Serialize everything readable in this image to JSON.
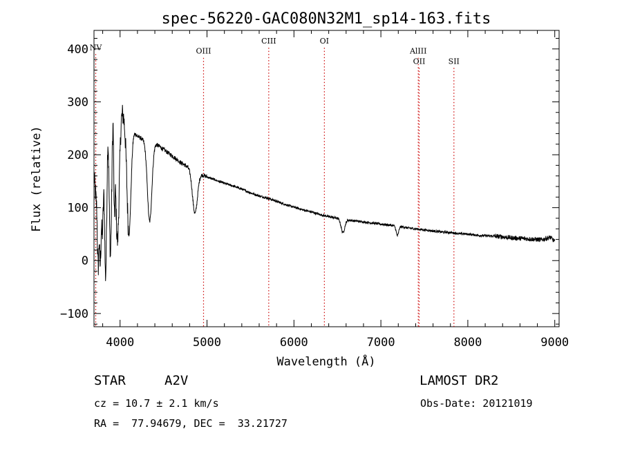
{
  "chart_data": {
    "type": "line",
    "title": "spec-56220-GAC080N32M1_sp14-163.fits",
    "xlabel": "Wavelength (Å)",
    "ylabel": "Flux (relative)",
    "xlim": [
      3700,
      9050
    ],
    "ylim": [
      -125,
      435
    ],
    "x_ticks": [
      4000,
      5000,
      6000,
      7000,
      8000,
      9000
    ],
    "y_ticks": [
      -100,
      0,
      100,
      200,
      300,
      400
    ],
    "x_tick_labels": [
      "4000",
      "5000",
      "6000",
      "7000",
      "8000",
      "9000"
    ],
    "y_tick_labels": [
      "−100",
      "0",
      "100",
      "200",
      "300",
      "400"
    ],
    "grid": false,
    "line_color": "#000000",
    "marker_color": "#cc0000",
    "lines": [
      {
        "label": "NV",
        "x": 3720,
        "y_label": 398
      },
      {
        "label": "OIII",
        "x": 4960,
        "y_label": 391
      },
      {
        "label": "CIII",
        "x": 5710,
        "y_label": 410
      },
      {
        "label": "OI",
        "x": 6350,
        "y_label": 410
      },
      {
        "label": "AlIII",
        "x": 7430,
        "y_label": 391
      },
      {
        "label": "OII",
        "x": 7440,
        "y_label": 372
      },
      {
        "label": "SII",
        "x": 7840,
        "y_label": 372
      }
    ],
    "series": [
      {
        "x": [
          3700,
          3720,
          3740,
          3760,
          3780,
          3800,
          3830,
          3860,
          3890,
          3920,
          3950,
          3980,
          4000,
          4030,
          4060,
          4100,
          4150,
          4200,
          4300,
          4400,
          4500,
          4600,
          4700,
          4800,
          4900,
          5000,
          5100,
          5200,
          5300,
          5400,
          5500,
          5600,
          5700,
          5800,
          5900,
          6000,
          6100,
          6200,
          6300,
          6400,
          6500,
          6600,
          6700,
          6800,
          6900,
          7000,
          7100,
          7200,
          7300,
          7400,
          7500,
          7600,
          7700,
          7800,
          7900,
          8000,
          8100,
          8200,
          8300,
          8400,
          8500,
          8600,
          8700,
          8800,
          8850,
          8900,
          8950,
          9000
        ],
        "y": [
          160,
          120,
          100,
          200,
          150,
          260,
          200,
          300,
          240,
          320,
          290,
          300,
          285,
          280,
          265,
          250,
          245,
          235,
          225,
          222,
          210,
          198,
          185,
          175,
          166,
          158,
          152,
          146,
          141,
          135,
          128,
          122,
          118,
          112,
          106,
          101,
          96,
          92,
          87,
          83,
          80,
          77,
          75,
          73,
          71,
          69,
          67,
          65,
          62,
          60,
          58,
          56,
          54,
          53,
          51,
          50,
          48,
          47,
          46,
          45,
          43,
          42,
          41,
          40,
          39,
          42,
          44,
          36
        ]
      }
    ],
    "absorption": [
      {
        "x": 3750,
        "depth": 150,
        "w": 12
      },
      {
        "x": 3770,
        "depth": 170,
        "w": 12
      },
      {
        "x": 3798,
        "depth": 190,
        "w": 14
      },
      {
        "x": 3835,
        "depth": 240,
        "w": 18
      },
      {
        "x": 3889,
        "depth": 230,
        "w": 22
      },
      {
        "x": 3934,
        "depth": 170,
        "w": 10
      },
      {
        "x": 3970,
        "depth": 260,
        "w": 28
      },
      {
        "x": 4102,
        "depth": 200,
        "w": 32
      },
      {
        "x": 4340,
        "depth": 150,
        "w": 36
      },
      {
        "x": 4861,
        "depth": 80,
        "w": 40
      },
      {
        "x": 6563,
        "depth": 25,
        "w": 30
      },
      {
        "x": 7190,
        "depth": 18,
        "w": 20
      }
    ]
  },
  "info": {
    "object_class": "STAR",
    "subclass": "A2V",
    "survey": "LAMOST DR2",
    "cz": "cz = 10.7 ± 2.1 km/s",
    "obs_date": "Obs-Date: 20121019",
    "coords": "RA =  77.94679, DEC =  33.21727"
  }
}
